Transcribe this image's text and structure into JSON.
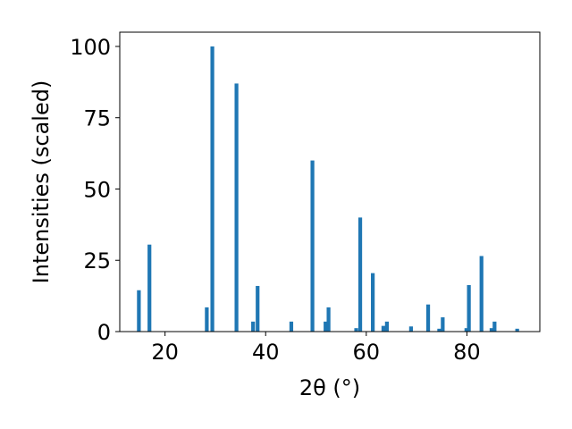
{
  "chart_data": {
    "type": "bar",
    "xlabel": "2θ (°)",
    "ylabel": "Intensities (scaled)",
    "xlim": [
      11,
      94.5
    ],
    "ylim": [
      0,
      105
    ],
    "x_ticks": [
      20,
      40,
      60,
      80
    ],
    "y_ticks": [
      0,
      25,
      50,
      75,
      100
    ],
    "bar_width": 0.75,
    "bar_color": "#1f77b4",
    "grid": false,
    "legend": "none",
    "x": [
      14.8,
      16.9,
      28.3,
      29.4,
      34.2,
      37.5,
      38.4,
      45.1,
      49.3,
      51.9,
      52.5,
      58.0,
      58.8,
      61.3,
      63.4,
      64.1,
      68.9,
      72.3,
      74.5,
      75.2,
      79.9,
      80.4,
      82.9,
      84.9,
      85.5,
      90.0
    ],
    "values": [
      14.5,
      30.5,
      8.5,
      100,
      87,
      3.5,
      16,
      3.5,
      60,
      3.5,
      8.5,
      1.2,
      40,
      20.5,
      2,
      3.5,
      1.8,
      9.5,
      1,
      5,
      1.2,
      16.3,
      26.5,
      1.2,
      3.5,
      1
    ]
  }
}
